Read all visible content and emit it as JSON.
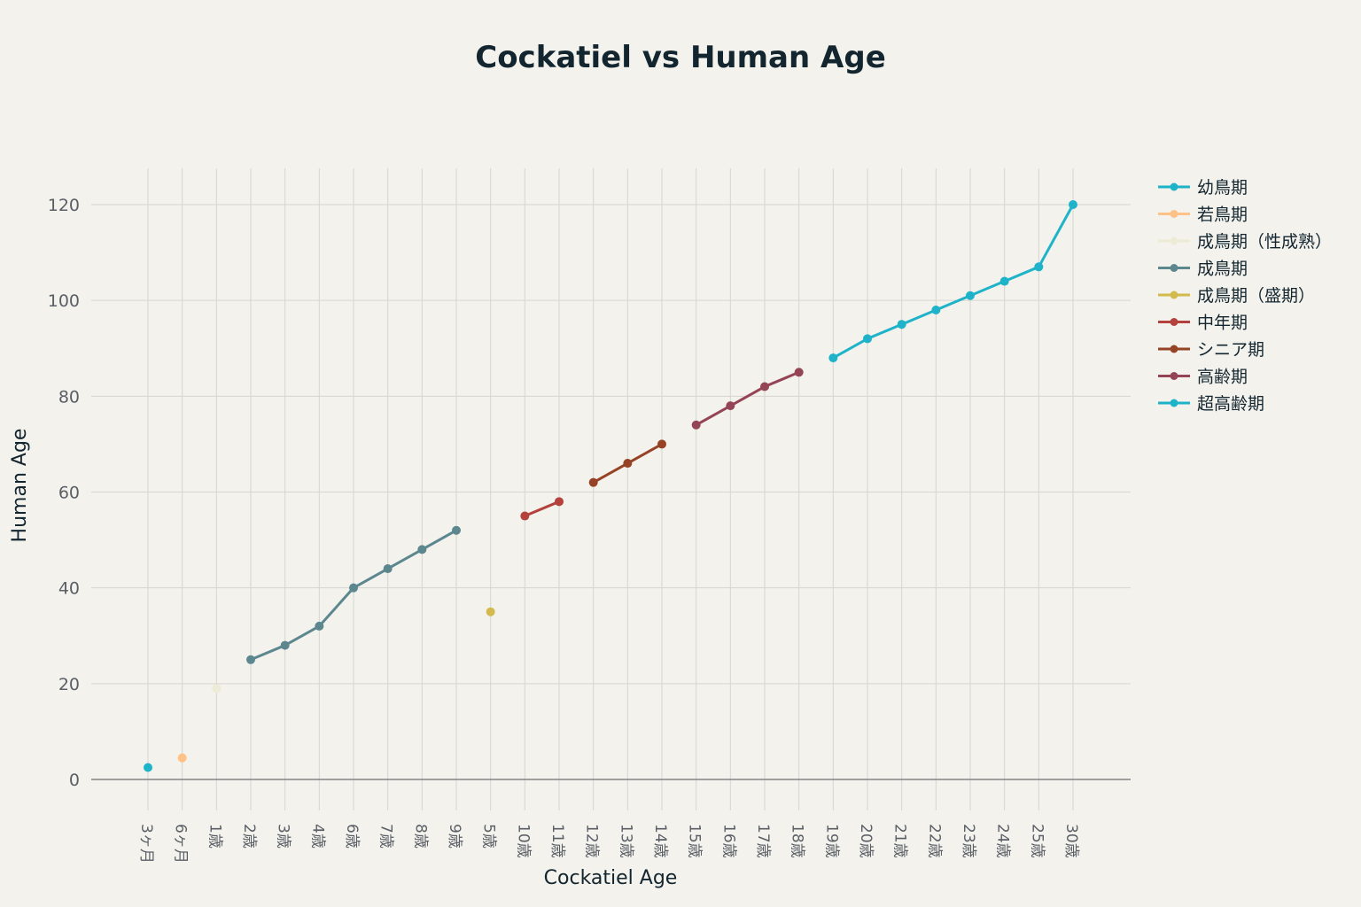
{
  "chart_data": {
    "type": "line",
    "title": "Cockatiel vs Human Age",
    "xlabel": "Cockatiel Age",
    "ylabel": "Human Age",
    "ylim": [
      0,
      120
    ],
    "yticks": [
      0,
      20,
      40,
      60,
      80,
      100,
      120
    ],
    "grid": true,
    "legend_placement": "top-right",
    "categories": [
      "3ヶ月",
      "6ヶ月",
      "1歳",
      "2歳",
      "3歳",
      "4歳",
      "6歳",
      "7歳",
      "8歳",
      "9歳",
      "5歳",
      "10歳",
      "11歳",
      "12歳",
      "13歳",
      "14歳",
      "15歳",
      "16歳",
      "17歳",
      "18歳",
      "19歳",
      "20歳",
      "21歳",
      "22歳",
      "23歳",
      "24歳",
      "25歳",
      "30歳"
    ],
    "series": [
      {
        "name": "幼鳥期",
        "color": "#1fb3c9",
        "x": [
          "3ヶ月"
        ],
        "values": [
          2.5
        ]
      },
      {
        "name": "若鳥期",
        "color": "#ffc185",
        "x": [
          "6ヶ月"
        ],
        "values": [
          4.5
        ]
      },
      {
        "name": "成鳥期（性成熟）",
        "color": "#ecebd5",
        "x": [
          "1歳"
        ],
        "values": [
          19
        ]
      },
      {
        "name": "成鳥期",
        "color": "#5d878f",
        "x": [
          "2歳",
          "3歳",
          "4歳",
          "6歳",
          "7歳",
          "8歳",
          "9歳"
        ],
        "values": [
          25,
          28,
          32,
          40,
          44,
          48,
          52
        ]
      },
      {
        "name": "成鳥期（盛期）",
        "color": "#d2ba4c",
        "x": [
          "5歳"
        ],
        "values": [
          35
        ]
      },
      {
        "name": "中年期",
        "color": "#b4413c",
        "x": [
          "10歳",
          "11歳"
        ],
        "values": [
          55,
          58
        ]
      },
      {
        "name": "シニア期",
        "color": "#964325",
        "x": [
          "12歳",
          "13歳",
          "14歳"
        ],
        "values": [
          62,
          66,
          70
        ]
      },
      {
        "name": "高齢期",
        "color": "#944454",
        "x": [
          "15歳",
          "16歳",
          "17歳",
          "18歳"
        ],
        "values": [
          74,
          78,
          82,
          85
        ]
      },
      {
        "name": "超高齢期",
        "color": "#1fb3c9",
        "x": [
          "19歳",
          "20歳",
          "21歳",
          "22歳",
          "23歳",
          "24歳",
          "25歳",
          "30歳"
        ],
        "values": [
          88,
          92,
          95,
          98,
          101,
          104,
          107,
          120
        ]
      }
    ]
  }
}
